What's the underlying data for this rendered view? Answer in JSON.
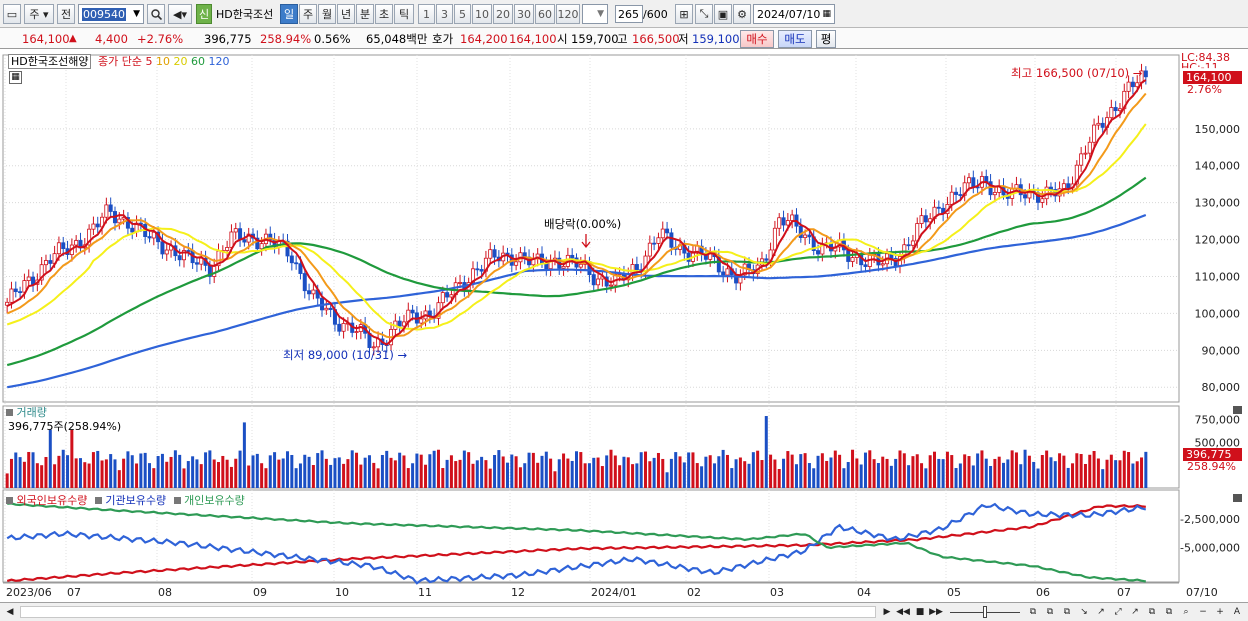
{
  "toolbar": {
    "market": "주",
    "prev": "전",
    "code": "009540",
    "stock_name": "HD한국조선",
    "shin_label": "신",
    "periods": [
      "일",
      "주",
      "월",
      "년",
      "분",
      "초",
      "틱"
    ],
    "active_period": "일",
    "intervals": [
      "1",
      "3",
      "5",
      "10",
      "20",
      "30",
      "60",
      "120"
    ],
    "count": "265",
    "count_max": "/600",
    "date": "2024/07/10"
  },
  "quote": {
    "price": "164,100",
    "change_arrow": "▲",
    "change": "4,400",
    "change_pct": "+2.76%",
    "volume": "396,775",
    "volume_ratio": "258.94%",
    "turnover": "0.56%",
    "amount": "65,048백만",
    "hoga_label": "호가",
    "ask": "164,200",
    "bid": "164,100",
    "open_label": "시",
    "open": "159,700",
    "high_label": "고",
    "high": "166,500",
    "low_label": "저",
    "low": "159,100",
    "buy": "매수",
    "sell": "매도",
    "eval": "평"
  },
  "price_panel": {
    "name": "HD한국조선해양",
    "ma_label": "종가 단순",
    "ma_periods": [
      "5",
      "10",
      "20",
      "60",
      "120"
    ],
    "high_note": "최고 166,500 (07/10)",
    "low_note": "최저 89,000 (10/31)",
    "dividend_note": "배당락(0.00%)",
    "lc_label": "LC:84.38",
    "hc_label": "HC:-11",
    "last_price": "164,100",
    "last_pct": "2.76%"
  },
  "volume_panel": {
    "title": "거래량",
    "value": "396,775주(258.94%)",
    "last_volume": "396,775",
    "last_pct": "258.94%"
  },
  "holdings_panel": {
    "legends": [
      "외국인보유수량",
      "기관보유수량",
      "개인보유수량"
    ]
  },
  "x_labels": [
    "2023/06",
    "07",
    "08",
    "09",
    "10",
    "11",
    "12",
    "2024/01",
    "02",
    "03",
    "04",
    "05",
    "06",
    "07"
  ],
  "x_last": "07/10",
  "colors": {
    "up": "#d0101b",
    "down": "#1b4fc4",
    "ma5": "#d0101b",
    "ma10": "#f39a1a",
    "ma20": "#f5f01a",
    "ma60": "#1f9a3c",
    "ma120": "#2f63d8",
    "foreign": "#d0101b",
    "institution": "#2f63d8",
    "individual": "#2e9a55"
  },
  "chart_data": [
    {
      "type": "candlestick",
      "title": "HD한국조선해양",
      "y_ticks": [
        "150,000",
        "140,000",
        "130,000",
        "120,000",
        "110,000",
        "100,000",
        "90,000",
        "80,000"
      ],
      "ylim": [
        76000,
        170000
      ],
      "x": [
        "2023/06",
        "07",
        "08",
        "09",
        "10",
        "11",
        "12",
        "2024/01",
        "02",
        "03",
        "04",
        "05",
        "06",
        "07"
      ],
      "close_path": [
        103000,
        108000,
        115000,
        117000,
        122000,
        127000,
        125000,
        120000,
        118000,
        114000,
        113000,
        120000,
        121000,
        119000,
        116000,
        104000,
        99000,
        96000,
        91000,
        96000,
        99000,
        101000,
        106000,
        112000,
        115000,
        116000,
        113000,
        115000,
        113000,
        110000,
        108000,
        113000,
        121000,
        118000,
        116000,
        113000,
        110000,
        112000,
        126000,
        122000,
        118000,
        117000,
        115000,
        113000,
        117000,
        124000,
        130000,
        133000,
        137000,
        131000,
        134000,
        131000,
        134000,
        144000,
        153000,
        160000,
        164100
      ],
      "ma_last": {
        "ma20": 152000,
        "ma60": 137000,
        "ma120": 127000
      }
    },
    {
      "type": "bar",
      "title": "거래량",
      "y_ticks": [
        "750,000",
        "500,000"
      ],
      "last_value": 396775
    },
    {
      "type": "line",
      "title": "보유수량",
      "y_ticks": [
        "-2,500,000",
        "-5,000,000"
      ],
      "series": [
        {
          "name": "외국인보유수량"
        },
        {
          "name": "기관보유수량"
        },
        {
          "name": "개인보유수량"
        }
      ]
    }
  ]
}
